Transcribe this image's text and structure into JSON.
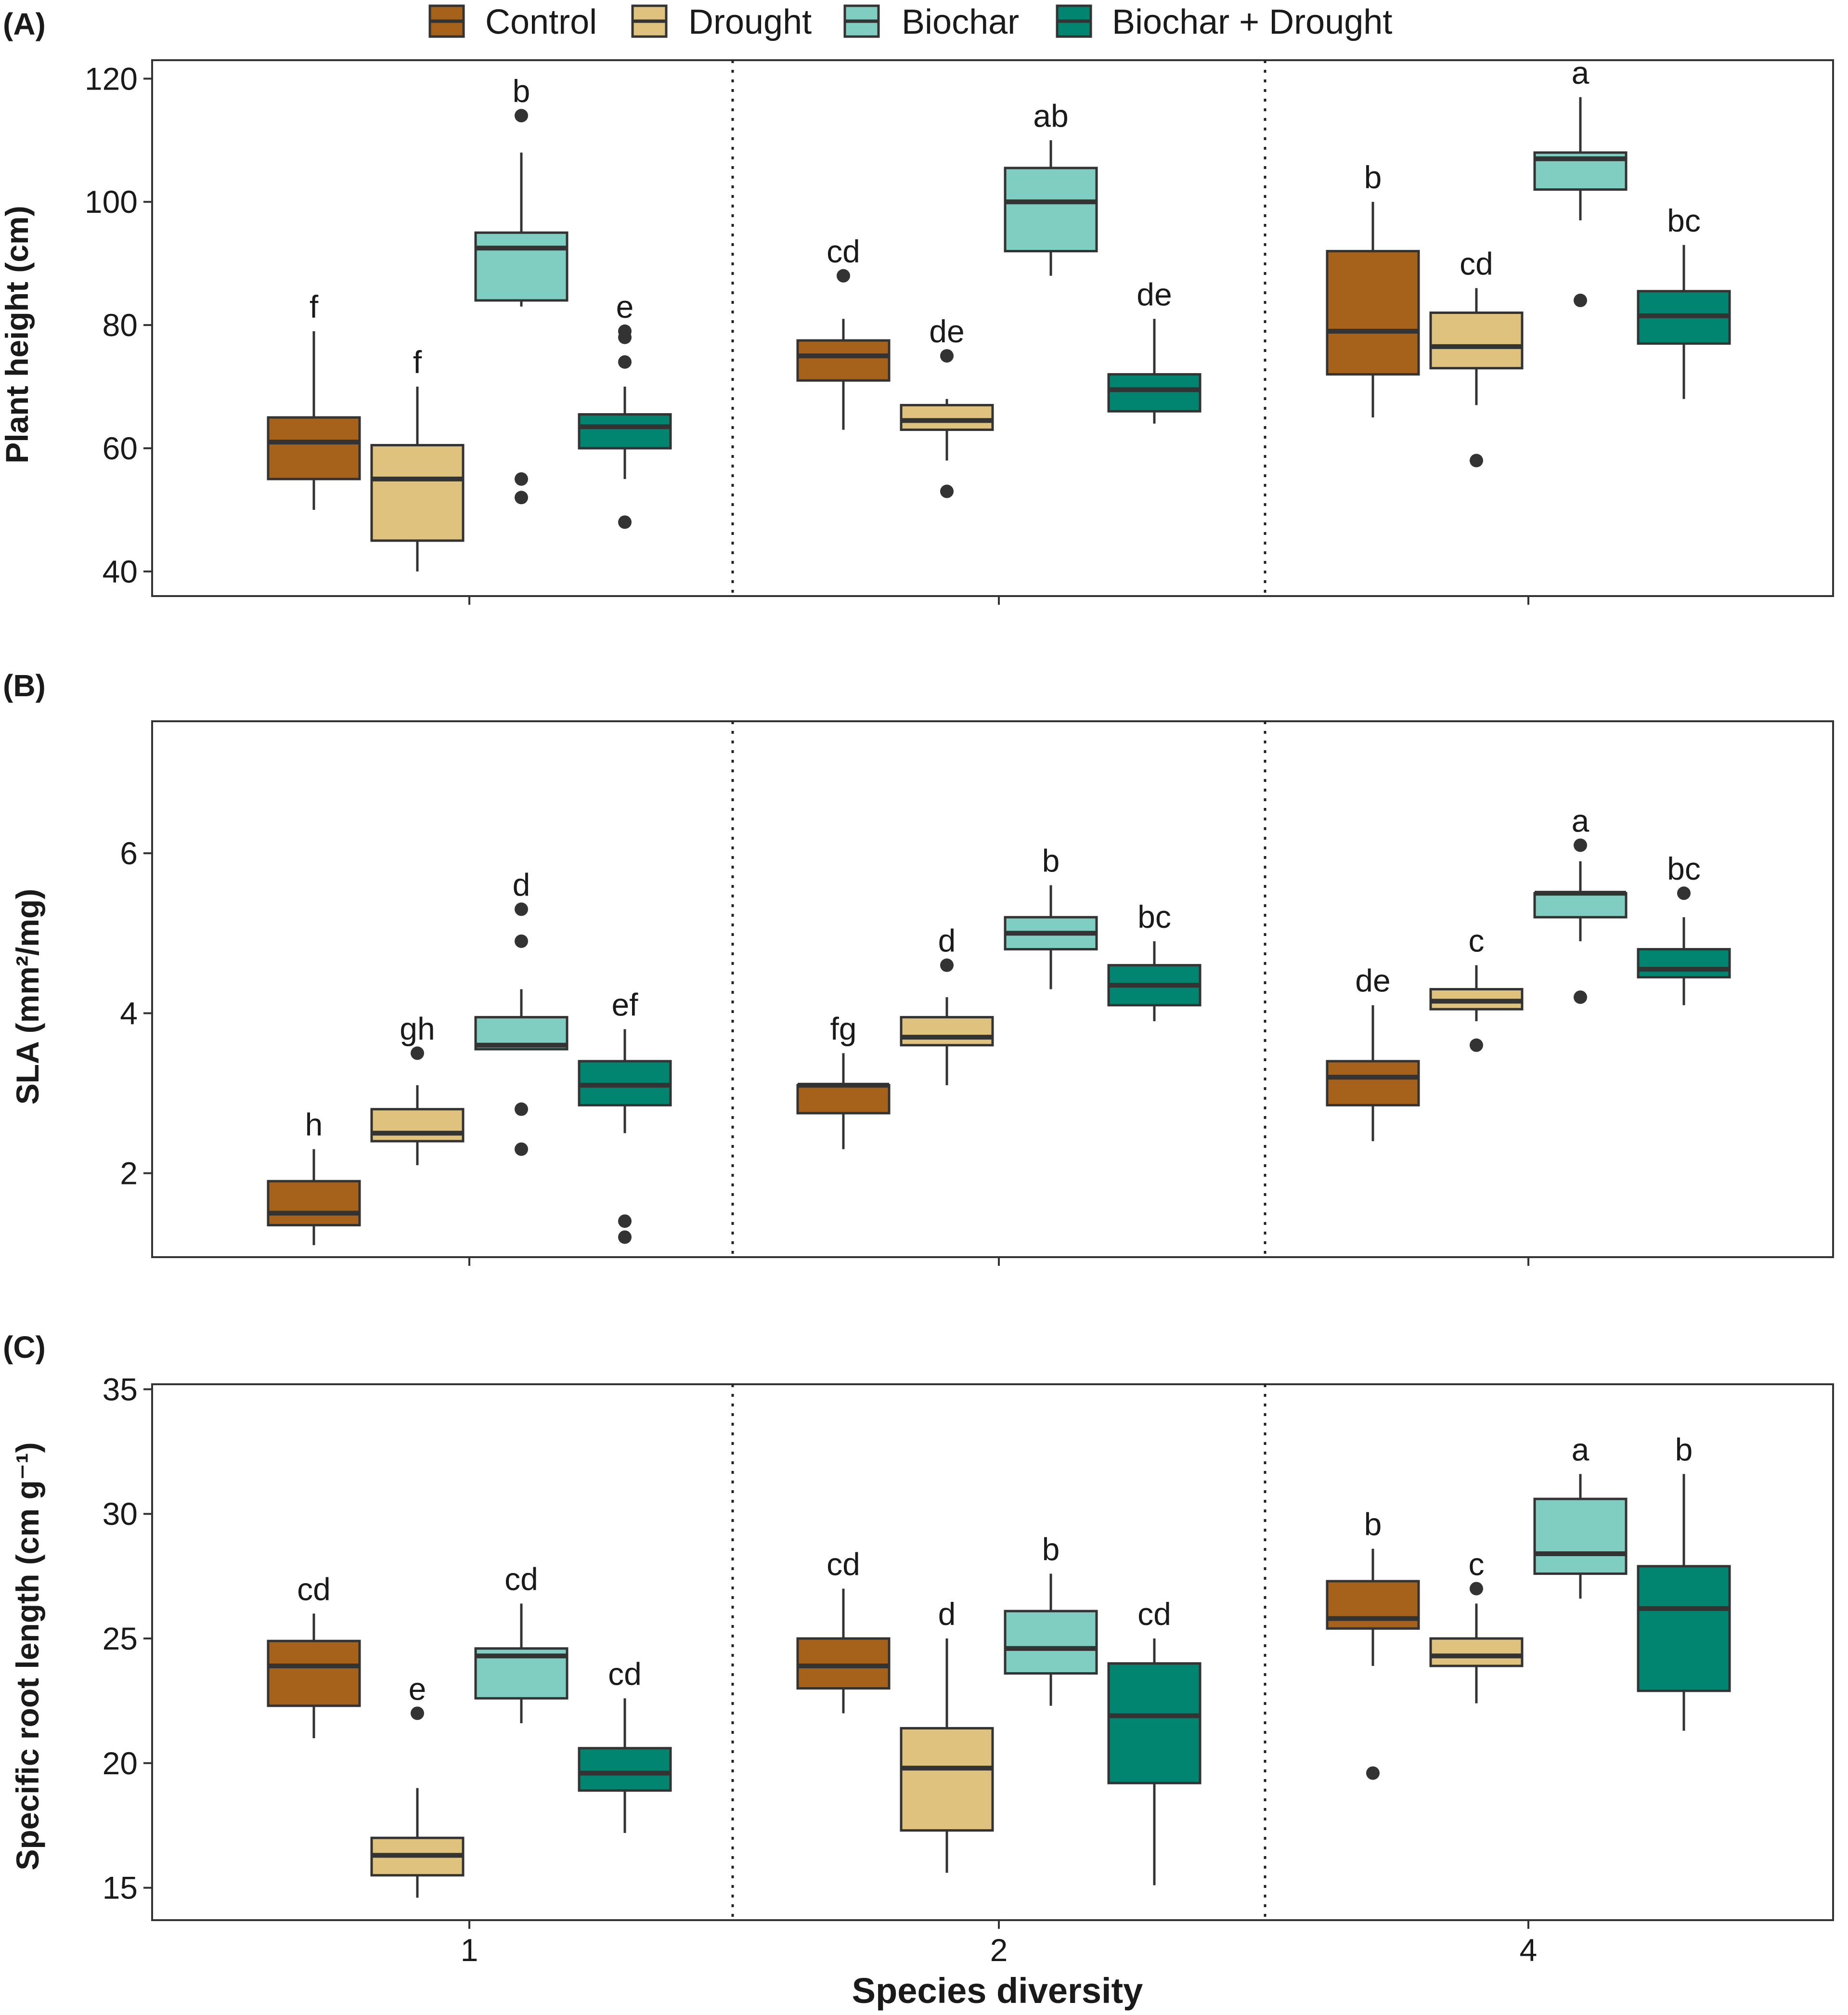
{
  "legend": {
    "items": [
      {
        "label": "Control",
        "color": "#A6611A"
      },
      {
        "label": "Drought",
        "color": "#DFC27D"
      },
      {
        "label": "Biochar",
        "color": "#80CDC1"
      },
      {
        "label": "Biochar + Drought",
        "color": "#018571"
      }
    ]
  },
  "x_axis": {
    "title": "Species diversity"
  },
  "chart_data": [
    {
      "type": "boxplot",
      "panel_tag": "(A)",
      "ylabel": "Plant height (cm)",
      "ylim": [
        36,
        123
      ],
      "yticks": [
        40,
        60,
        80,
        100,
        120
      ],
      "categories": [
        "1",
        "2",
        "4"
      ],
      "groups": [
        {
          "category": "1",
          "treatment": "Control",
          "whisker_low": 50,
          "q1": 55,
          "median": 61,
          "q3": 65,
          "whisker_high": 79,
          "outliers": [],
          "letter": "f"
        },
        {
          "category": "1",
          "treatment": "Drought",
          "whisker_low": 40,
          "q1": 45,
          "median": 55,
          "q3": 60.5,
          "whisker_high": 70,
          "outliers": [],
          "letter": "f"
        },
        {
          "category": "1",
          "treatment": "Biochar",
          "whisker_low": 83,
          "q1": 84,
          "median": 92.5,
          "q3": 95,
          "whisker_high": 108,
          "outliers": [
            114,
            55,
            52
          ],
          "letter": "b"
        },
        {
          "category": "1",
          "treatment": "Biochar + Drought",
          "whisker_low": 55,
          "q1": 60,
          "median": 63.5,
          "q3": 65.5,
          "whisker_high": 70,
          "outliers": [
            79,
            78,
            74,
            48
          ],
          "letter": "e"
        },
        {
          "category": "2",
          "treatment": "Control",
          "whisker_low": 63,
          "q1": 71,
          "median": 75,
          "q3": 77.5,
          "whisker_high": 81,
          "outliers": [
            88
          ],
          "letter": "cd"
        },
        {
          "category": "2",
          "treatment": "Drought",
          "whisker_low": 58,
          "q1": 63,
          "median": 64.5,
          "q3": 67,
          "whisker_high": 68,
          "outliers": [
            75,
            53
          ],
          "letter": "de"
        },
        {
          "category": "2",
          "treatment": "Biochar",
          "whisker_low": 88,
          "q1": 92,
          "median": 100,
          "q3": 105.5,
          "whisker_high": 110,
          "outliers": [],
          "letter": "ab"
        },
        {
          "category": "2",
          "treatment": "Biochar + Drought",
          "whisker_low": 64,
          "q1": 66,
          "median": 69.5,
          "q3": 72,
          "whisker_high": 81,
          "outliers": [],
          "letter": "de"
        },
        {
          "category": "4",
          "treatment": "Control",
          "whisker_low": 65,
          "q1": 72,
          "median": 79,
          "q3": 92,
          "whisker_high": 100,
          "outliers": [],
          "letter": "b"
        },
        {
          "category": "4",
          "treatment": "Drought",
          "whisker_low": 67,
          "q1": 73,
          "median": 76.5,
          "q3": 82,
          "whisker_high": 86,
          "outliers": [
            58
          ],
          "letter": "cd"
        },
        {
          "category": "4",
          "treatment": "Biochar",
          "whisker_low": 97,
          "q1": 102,
          "median": 107,
          "q3": 108,
          "whisker_high": 117,
          "outliers": [
            84
          ],
          "letter": "a"
        },
        {
          "category": "4",
          "treatment": "Biochar + Drought",
          "whisker_low": 68,
          "q1": 77,
          "median": 81.5,
          "q3": 85.5,
          "whisker_high": 93,
          "outliers": [],
          "letter": "bc"
        }
      ]
    },
    {
      "type": "boxplot",
      "panel_tag": "(B)",
      "ylabel": "SLA (mm²/mg)",
      "ylim": [
        0.95,
        7.65
      ],
      "yticks": [
        2,
        4,
        6
      ],
      "categories": [
        "1",
        "2",
        "4"
      ],
      "groups": [
        {
          "category": "1",
          "treatment": "Control",
          "whisker_low": 1.1,
          "q1": 1.35,
          "median": 1.5,
          "q3": 1.9,
          "whisker_high": 2.3,
          "outliers": [],
          "letter": "h"
        },
        {
          "category": "1",
          "treatment": "Drought",
          "whisker_low": 2.1,
          "q1": 2.4,
          "median": 2.5,
          "q3": 2.8,
          "whisker_high": 3.1,
          "outliers": [
            3.5
          ],
          "letter": "gh"
        },
        {
          "category": "1",
          "treatment": "Biochar",
          "whisker_low": 3.55,
          "q1": 3.55,
          "median": 3.6,
          "q3": 3.95,
          "whisker_high": 4.3,
          "outliers": [
            5.3,
            4.9,
            2.8,
            2.3
          ],
          "letter": "d"
        },
        {
          "category": "1",
          "treatment": "Biochar + Drought",
          "whisker_low": 2.5,
          "q1": 2.85,
          "median": 3.1,
          "q3": 3.4,
          "whisker_high": 3.8,
          "outliers": [
            1.4,
            1.2
          ],
          "letter": "ef"
        },
        {
          "category": "2",
          "treatment": "Control",
          "whisker_low": 2.3,
          "q1": 2.75,
          "median": 3.1,
          "q3": 3.1,
          "whisker_high": 3.5,
          "outliers": [],
          "letter": "fg"
        },
        {
          "category": "2",
          "treatment": "Drought",
          "whisker_low": 3.1,
          "q1": 3.6,
          "median": 3.7,
          "q3": 3.95,
          "whisker_high": 4.2,
          "outliers": [
            4.6
          ],
          "letter": "d"
        },
        {
          "category": "2",
          "treatment": "Biochar",
          "whisker_low": 4.3,
          "q1": 4.8,
          "median": 5.0,
          "q3": 5.2,
          "whisker_high": 5.6,
          "outliers": [],
          "letter": "b"
        },
        {
          "category": "2",
          "treatment": "Biochar + Drought",
          "whisker_low": 3.9,
          "q1": 4.1,
          "median": 4.35,
          "q3": 4.6,
          "whisker_high": 4.9,
          "outliers": [],
          "letter": "bc"
        },
        {
          "category": "4",
          "treatment": "Control",
          "whisker_low": 2.4,
          "q1": 2.85,
          "median": 3.2,
          "q3": 3.4,
          "whisker_high": 4.1,
          "outliers": [],
          "letter": "de"
        },
        {
          "category": "4",
          "treatment": "Drought",
          "whisker_low": 3.9,
          "q1": 4.05,
          "median": 4.15,
          "q3": 4.3,
          "whisker_high": 4.6,
          "outliers": [
            3.6
          ],
          "letter": "c"
        },
        {
          "category": "4",
          "treatment": "Biochar",
          "whisker_low": 4.9,
          "q1": 5.2,
          "median": 5.5,
          "q3": 5.5,
          "whisker_high": 5.9,
          "outliers": [
            6.1,
            4.2
          ],
          "letter": "a"
        },
        {
          "category": "4",
          "treatment": "Biochar + Drought",
          "whisker_low": 4.1,
          "q1": 4.45,
          "median": 4.55,
          "q3": 4.8,
          "whisker_high": 5.2,
          "outliers": [
            5.5
          ],
          "letter": "bc"
        }
      ]
    },
    {
      "type": "boxplot",
      "panel_tag": "(C)",
      "ylabel": "Specific root length (cm g⁻¹)",
      "ylim": [
        13.7,
        35.2
      ],
      "yticks": [
        15,
        20,
        25,
        30,
        35
      ],
      "categories": [
        "1",
        "2",
        "4"
      ],
      "groups": [
        {
          "category": "1",
          "treatment": "Control",
          "whisker_low": 21,
          "q1": 22.3,
          "median": 23.9,
          "q3": 24.9,
          "whisker_high": 26,
          "outliers": [],
          "letter": "cd"
        },
        {
          "category": "1",
          "treatment": "Drought",
          "whisker_low": 14.6,
          "q1": 15.5,
          "median": 16.3,
          "q3": 17,
          "whisker_high": 19,
          "outliers": [
            22
          ],
          "letter": "e"
        },
        {
          "category": "1",
          "treatment": "Biochar",
          "whisker_low": 21.6,
          "q1": 22.6,
          "median": 24.3,
          "q3": 24.6,
          "whisker_high": 26.4,
          "outliers": [],
          "letter": "cd"
        },
        {
          "category": "1",
          "treatment": "Biochar + Drought",
          "whisker_low": 17.2,
          "q1": 18.9,
          "median": 19.6,
          "q3": 20.6,
          "whisker_high": 22.6,
          "outliers": [],
          "letter": "cd"
        },
        {
          "category": "2",
          "treatment": "Control",
          "whisker_low": 22,
          "q1": 23,
          "median": 23.9,
          "q3": 25,
          "whisker_high": 27,
          "outliers": [],
          "letter": "cd"
        },
        {
          "category": "2",
          "treatment": "Drought",
          "whisker_low": 15.6,
          "q1": 17.3,
          "median": 19.8,
          "q3": 21.4,
          "whisker_high": 25,
          "outliers": [],
          "letter": "d"
        },
        {
          "category": "2",
          "treatment": "Biochar",
          "whisker_low": 22.3,
          "q1": 23.6,
          "median": 24.6,
          "q3": 26.1,
          "whisker_high": 27.6,
          "outliers": [],
          "letter": "b"
        },
        {
          "category": "2",
          "treatment": "Biochar + Drought",
          "whisker_low": 15.1,
          "q1": 19.2,
          "median": 21.9,
          "q3": 24,
          "whisker_high": 25,
          "outliers": [],
          "letter": "cd"
        },
        {
          "category": "4",
          "treatment": "Control",
          "whisker_low": 23.9,
          "q1": 25.4,
          "median": 25.8,
          "q3": 27.3,
          "whisker_high": 28.6,
          "outliers": [
            19.6
          ],
          "letter": "b"
        },
        {
          "category": "4",
          "treatment": "Drought",
          "whisker_low": 22.4,
          "q1": 23.9,
          "median": 24.3,
          "q3": 25,
          "whisker_high": 26.4,
          "outliers": [
            27
          ],
          "letter": "c"
        },
        {
          "category": "4",
          "treatment": "Biochar",
          "whisker_low": 26.6,
          "q1": 27.6,
          "median": 28.4,
          "q3": 30.6,
          "whisker_high": 31.6,
          "outliers": [],
          "letter": "a"
        },
        {
          "category": "4",
          "treatment": "Biochar + Drought",
          "whisker_low": 21.3,
          "q1": 22.9,
          "median": 26.2,
          "q3": 27.9,
          "whisker_high": 31.6,
          "outliers": [],
          "letter": "b"
        }
      ]
    }
  ]
}
